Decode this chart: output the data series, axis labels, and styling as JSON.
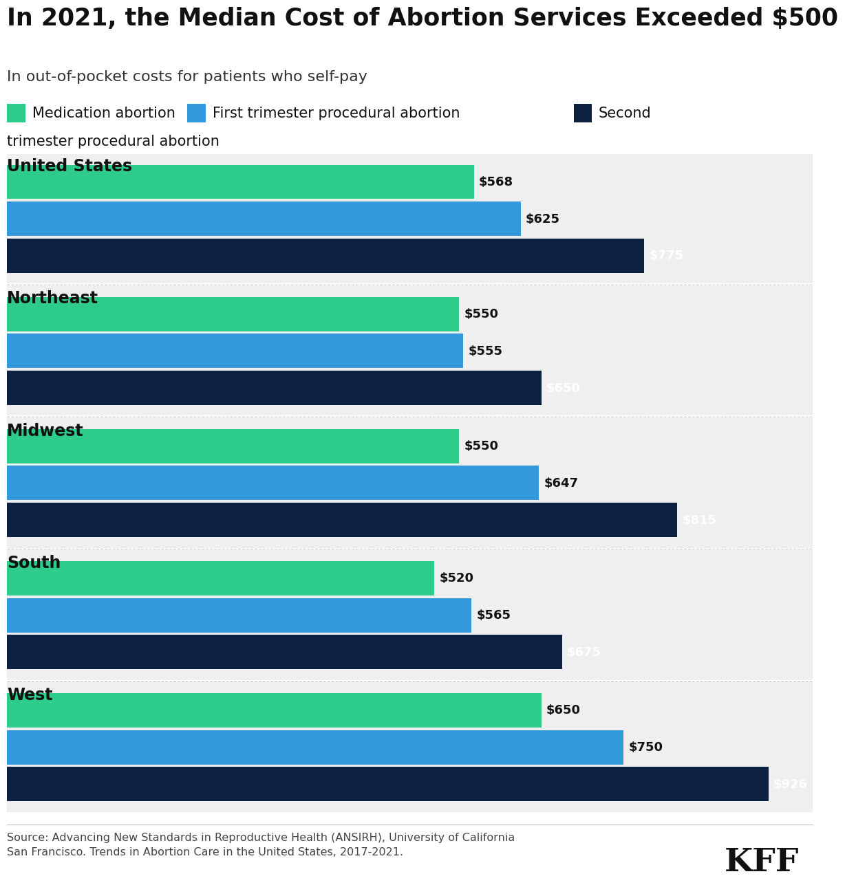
{
  "title": "In 2021, the Median Cost of Abortion Services Exceeded $500",
  "subtitle": "In out-of-pocket costs for patients who self-pay",
  "legend_labels": [
    "Medication abortion",
    "First trimester procedural abortion",
    "Second trimester procedural abortion"
  ],
  "legend_colors": [
    "#2ecc8a",
    "#3399dd",
    "#0d2240"
  ],
  "regions": [
    "United States",
    "Northeast",
    "Midwest",
    "South",
    "West"
  ],
  "data": {
    "United States": [
      568,
      625,
      775
    ],
    "Northeast": [
      550,
      555,
      650
    ],
    "Midwest": [
      550,
      647,
      815
    ],
    "South": [
      520,
      565,
      675
    ],
    "West": [
      650,
      750,
      926
    ]
  },
  "bar_colors": [
    "#2ecc8a",
    "#3399dd",
    "#0d2240"
  ],
  "bg_color_shaded": "#efefef",
  "bg_color_white": "#ffffff",
  "value_label_fontsize": 13,
  "region_fontsize": 17,
  "title_fontsize": 25,
  "subtitle_fontsize": 16,
  "legend_fontsize": 15,
  "source_text": "Source: Advancing New Standards in Reproductive Health (ANSIRH), University of California\nSan Francisco. Trends in Abortion Care in the United States, 2017-2021.",
  "kff_text": "KFF",
  "xlim_max": 980
}
